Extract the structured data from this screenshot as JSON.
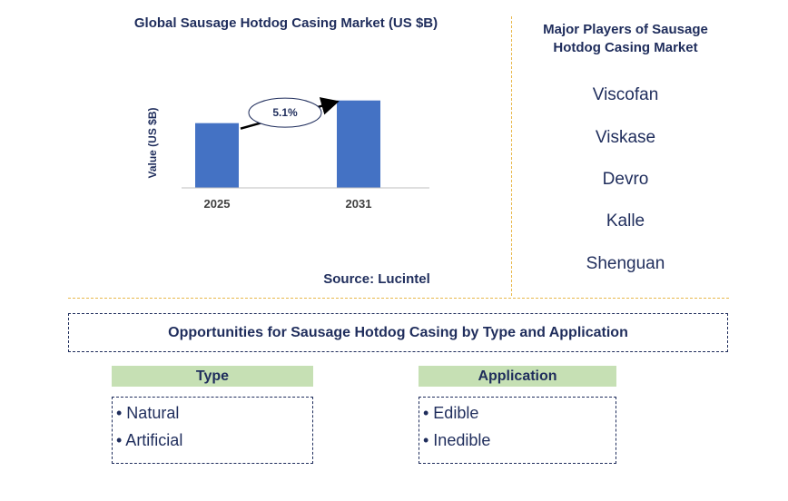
{
  "chart_data": {
    "type": "bar",
    "title": "Global Sausage Hotdog Casing Market (US $B)",
    "ylabel": "Value (US $B)",
    "xlabel": "",
    "categories": [
      "2025",
      "2031"
    ],
    "values": [
      1.0,
      1.35
    ],
    "ylim": [
      0,
      1.5
    ],
    "grid": false,
    "bar_color": "#4472c4",
    "annotation": {
      "label": "5.1%",
      "type": "cagr-arrow",
      "from": "2025",
      "to": "2031"
    }
  },
  "source": "Source: Lucintel",
  "players": {
    "title": "Major Players of Sausage Hotdog Casing Market",
    "items": [
      "Viscofan",
      "Viskase",
      "Devro",
      "Kalle",
      "Shenguan"
    ]
  },
  "opportunities": {
    "title": "Opportunities for Sausage Hotdog Casing by Type and Application",
    "type": {
      "header": "Type",
      "items": [
        "• Natural",
        "• Artificial"
      ]
    },
    "application": {
      "header": "Application",
      "items": [
        "• Edible",
        "• Inedible"
      ]
    }
  },
  "colors": {
    "text": "#1f2d5c",
    "bar": "#4472c4",
    "divider": "#e8b84a",
    "category_header": "#c6e0b4"
  }
}
